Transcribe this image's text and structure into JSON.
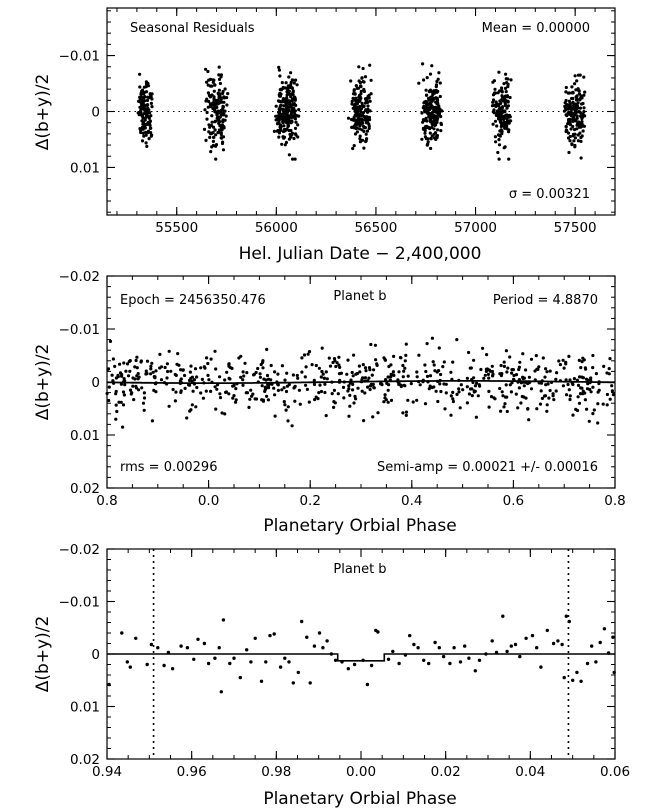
{
  "chart_data": [
    {
      "type": "scatter",
      "title": "Seasonal Residuals",
      "annotations": {
        "top_left": "Seasonal Residuals",
        "top_right": "Mean = 0.00000",
        "bottom_right": "σ = 0.00321"
      },
      "xlabel": "Hel. Julian Date − 2,400,000",
      "ylabel": "Δ(b+y)/2",
      "xlim": [
        55150,
        57700
      ],
      "ylim": [
        0.0185,
        -0.0185
      ],
      "y_inverted": true,
      "xticks": [
        "55500",
        "56000",
        "56500",
        "57000",
        "57500"
      ],
      "yticks": [
        "−0.01",
        "0",
        "0.01"
      ],
      "reference_line": {
        "y": 0,
        "style": "dotted"
      },
      "seasons": [
        {
          "center_x": 55340,
          "n_points": 120,
          "x_spread": 55,
          "y_mean": 0.0,
          "y_sd": 0.0029
        },
        {
          "center_x": 55700,
          "n_points": 160,
          "x_spread": 75,
          "y_mean": 0.0,
          "y_sd": 0.0031
        },
        {
          "center_x": 56050,
          "n_points": 230,
          "x_spread": 75,
          "y_mean": 0.0,
          "y_sd": 0.0031
        },
        {
          "center_x": 56420,
          "n_points": 180,
          "x_spread": 70,
          "y_mean": 0.0,
          "y_sd": 0.0028
        },
        {
          "center_x": 56780,
          "n_points": 190,
          "x_spread": 70,
          "y_mean": 0.0,
          "y_sd": 0.0029
        },
        {
          "center_x": 57130,
          "n_points": 140,
          "x_spread": 65,
          "y_mean": 0.0,
          "y_sd": 0.0027
        },
        {
          "center_x": 57500,
          "n_points": 170,
          "x_spread": 75,
          "y_mean": 0.0,
          "y_sd": 0.0028
        }
      ]
    },
    {
      "type": "scatter",
      "title": "Planet b",
      "annotations": {
        "top_left": "Epoch = 2456350.476",
        "top_center": "Planet b",
        "top_right": "Period = 4.8870",
        "bottom_left": "rms = 0.00296",
        "bottom_right": "Semi-amp = 0.00021 +/- 0.00016"
      },
      "xlabel": "Planetary Orbial Phase",
      "ylabel": "Δ(b+y)/2",
      "xlim": [
        -0.2,
        0.8
      ],
      "ylim": [
        0.02,
        -0.02
      ],
      "y_inverted": true,
      "xticks": [
        "0.8",
        "0.0",
        "0.2",
        "0.4",
        "0.6",
        "0.8"
      ],
      "yticks": [
        "−0.02",
        "−0.01",
        "0",
        "0.01",
        "0.02"
      ],
      "n_points": 700,
      "y_sd": 0.00296,
      "model": {
        "type": "sinusoid",
        "semi_amplitude": 0.00021,
        "phase_of_min": 0.0
      }
    },
    {
      "type": "scatter",
      "title": "Planet b",
      "annotations": {
        "top_center": "Planet b"
      },
      "xlabel": "Planetary Orbial Phase",
      "ylabel": "Δ(b+y)/2",
      "xlim": [
        -0.06,
        0.06
      ],
      "ylim": [
        0.02,
        -0.02
      ],
      "y_inverted": true,
      "xticks": [
        "0.94",
        "0.96",
        "0.98",
        "0.00",
        "0.02",
        "0.04",
        "0.06"
      ],
      "yticks": [
        "−0.02",
        "−0.01",
        "0",
        "0.01",
        "0.02"
      ],
      "transit_window": {
        "ingress": -0.0055,
        "egress": 0.0055,
        "depth": 0.0013
      },
      "vertical_lines": [
        -0.049,
        0.049
      ],
      "points": [
        [
          -0.0595,
          0.0058
        ],
        [
          -0.0565,
          -0.004
        ],
        [
          -0.0552,
          0.0015
        ],
        [
          -0.0545,
          0.0025
        ],
        [
          -0.0532,
          -0.003
        ],
        [
          -0.0505,
          0.002
        ],
        [
          -0.0495,
          -0.0018
        ],
        [
          -0.048,
          -0.0012
        ],
        [
          -0.0465,
          0.0022
        ],
        [
          -0.0455,
          -0.0003
        ],
        [
          -0.0445,
          0.0028
        ],
        [
          -0.0425,
          -0.0015
        ],
        [
          -0.041,
          -0.0012
        ],
        [
          -0.0395,
          0.001
        ],
        [
          -0.0385,
          -0.0028
        ],
        [
          -0.037,
          -0.002
        ],
        [
          -0.036,
          0.0018
        ],
        [
          -0.0345,
          0.0008
        ],
        [
          -0.0335,
          -0.0012
        ],
        [
          -0.033,
          0.0072
        ],
        [
          -0.0325,
          -0.0065
        ],
        [
          -0.031,
          0.0018
        ],
        [
          -0.03,
          0.0008
        ],
        [
          -0.0285,
          0.0045
        ],
        [
          -0.027,
          -0.0008
        ],
        [
          -0.026,
          0.0015
        ],
        [
          -0.025,
          -0.003
        ],
        [
          -0.0235,
          0.0052
        ],
        [
          -0.0225,
          0.0015
        ],
        [
          -0.0215,
          -0.0035
        ],
        [
          -0.0205,
          -0.0038
        ],
        [
          -0.019,
          0.0025
        ],
        [
          -0.018,
          0.0008
        ],
        [
          -0.017,
          0.0015
        ],
        [
          -0.016,
          0.0055
        ],
        [
          -0.0148,
          0.0035
        ],
        [
          -0.014,
          -0.0062
        ],
        [
          -0.0128,
          -0.0032
        ],
        [
          -0.012,
          0.0055
        ],
        [
          -0.011,
          -0.0015
        ],
        [
          -0.0098,
          -0.004
        ],
        [
          -0.009,
          -0.0012
        ],
        [
          -0.008,
          -0.0025
        ],
        [
          -0.007,
          0.0
        ],
        [
          -0.006,
          0.0012
        ],
        [
          -0.0045,
          0.0015
        ],
        [
          -0.003,
          0.0028
        ],
        [
          -0.0015,
          0.002
        ],
        [
          0.0005,
          0.0012
        ],
        [
          0.0015,
          0.0058
        ],
        [
          0.0025,
          0.0022
        ],
        [
          0.0035,
          -0.0045
        ],
        [
          0.004,
          -0.0042
        ],
        [
          0.0065,
          0.001
        ],
        [
          0.0075,
          -0.0005
        ],
        [
          0.009,
          0.0018
        ],
        [
          0.0105,
          0.0002
        ],
        [
          0.0115,
          -0.0035
        ],
        [
          0.0125,
          -0.0018
        ],
        [
          0.0135,
          -0.0012
        ],
        [
          0.0148,
          0.0012
        ],
        [
          0.016,
          0.0018
        ],
        [
          0.0175,
          -0.0022
        ],
        [
          0.0185,
          -0.0012
        ],
        [
          0.0195,
          0.0005
        ],
        [
          0.021,
          0.0018
        ],
        [
          0.022,
          -0.0012
        ],
        [
          0.0235,
          0.0015
        ],
        [
          0.0245,
          -0.0015
        ],
        [
          0.0255,
          0.0008
        ],
        [
          0.027,
          0.0032
        ],
        [
          0.028,
          0.0012
        ],
        [
          0.0295,
          0.0
        ],
        [
          0.031,
          -0.0025
        ],
        [
          0.032,
          -0.0003
        ],
        [
          0.0335,
          -0.0072
        ],
        [
          0.0345,
          -0.0005
        ],
        [
          0.0355,
          -0.0015
        ],
        [
          0.0365,
          -0.0018
        ],
        [
          0.0375,
          0.0005
        ],
        [
          0.039,
          -0.003
        ],
        [
          0.0405,
          -0.0035
        ],
        [
          0.0415,
          -0.0012
        ],
        [
          0.0425,
          0.0025
        ],
        [
          0.044,
          -0.0045
        ],
        [
          0.0455,
          -0.002
        ],
        [
          0.0465,
          -0.0025
        ],
        [
          0.0475,
          -0.0018
        ],
        [
          0.048,
          0.0045
        ],
        [
          0.0485,
          -0.0072
        ],
        [
          0.0492,
          -0.0062
        ],
        [
          0.05,
          0.005
        ],
        [
          0.051,
          0.0035
        ],
        [
          0.052,
          0.0052
        ],
        [
          0.0535,
          0.0018
        ],
        [
          0.0545,
          -0.0015
        ],
        [
          0.0555,
          0.0015
        ],
        [
          0.0565,
          -0.0022
        ],
        [
          0.0575,
          -0.0048
        ],
        [
          0.0585,
          -0.0002
        ],
        [
          0.0595,
          -0.0032
        ],
        [
          0.0598,
          0.0035
        ]
      ]
    }
  ]
}
